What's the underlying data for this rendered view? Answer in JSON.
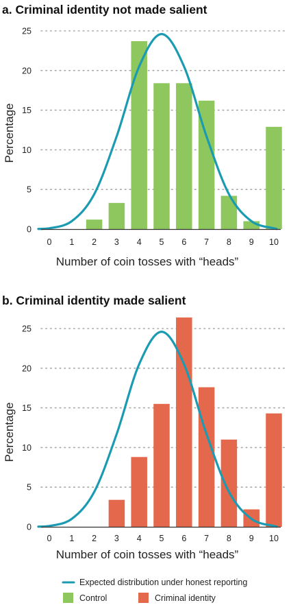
{
  "colors": {
    "control": "#8dc75e",
    "criminal": "#e4684c",
    "expected": "#1b9bb2",
    "grid": "#a8a8a8",
    "axis": "#333333"
  },
  "legend": {
    "expected_label": "Expected distribution under honest reporting",
    "control_label": "Control",
    "criminal_label": "Criminal identity"
  },
  "chart_data": [
    {
      "type": "bar",
      "title": "a. Criminal identity not made salient",
      "xlabel": "Number of coin tosses with “heads”",
      "ylabel": "Percentage",
      "categories": [
        "0",
        "1",
        "2",
        "3",
        "4",
        "5",
        "6",
        "7",
        "8",
        "9",
        "10"
      ],
      "yticks": [
        0,
        5,
        10,
        15,
        20,
        25
      ],
      "ylim": [
        0,
        26
      ],
      "grid": true,
      "series": [
        {
          "name": "Control",
          "color_key": "control",
          "values": [
            0,
            0,
            1.2,
            3.3,
            23.7,
            18.4,
            18.4,
            16.2,
            4.2,
            1.0,
            12.9
          ]
        }
      ],
      "expected_curve": {
        "name": "Expected distribution under honest reporting",
        "values": [
          0.1,
          1.0,
          4.4,
          11.7,
          20.5,
          24.6,
          20.5,
          11.7,
          4.4,
          1.0,
          0.1
        ]
      }
    },
    {
      "type": "bar",
      "title": "b. Criminal identity made salient",
      "xlabel": "Number of coin tosses with “heads”",
      "ylabel": "Percentage",
      "categories": [
        "0",
        "1",
        "2",
        "3",
        "4",
        "5",
        "6",
        "7",
        "8",
        "9",
        "10"
      ],
      "yticks": [
        0,
        5,
        10,
        15,
        20,
        25
      ],
      "ylim": [
        0,
        26
      ],
      "grid": true,
      "series": [
        {
          "name": "Criminal identity",
          "color_key": "criminal",
          "values": [
            0,
            0,
            0,
            3.4,
            8.8,
            15.5,
            26.4,
            17.6,
            11.0,
            2.2,
            14.3
          ]
        }
      ],
      "expected_curve": {
        "name": "Expected distribution under honest reporting",
        "values": [
          0.1,
          1.0,
          4.4,
          11.7,
          20.5,
          24.6,
          20.5,
          11.7,
          4.4,
          1.0,
          0.1
        ]
      }
    }
  ]
}
